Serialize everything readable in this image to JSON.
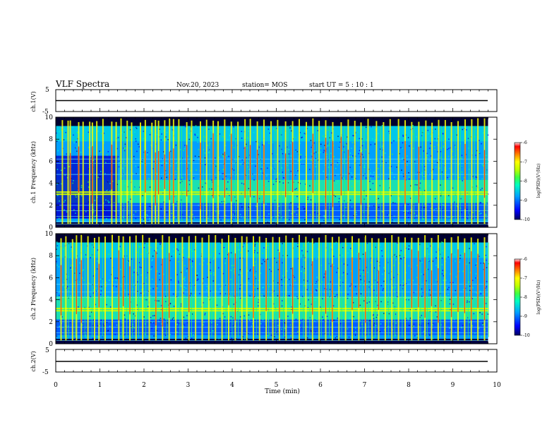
{
  "header": {
    "title": "VLF Spectra",
    "date": "Nov.20, 2023",
    "station": "station= MOS",
    "start": "start  UT =   5  : 10 : 1"
  },
  "chart_data": [
    {
      "id": "ch1-waveform",
      "type": "line",
      "ylabel": "ch.1(V)",
      "ylim": [
        -5,
        5
      ],
      "yticks": [
        "5",
        "-5"
      ],
      "xlim": [
        0,
        10
      ],
      "x": [
        0,
        9.8
      ],
      "y": [
        0,
        0
      ],
      "grid": false
    },
    {
      "id": "ch1-spectrogram",
      "type": "heatmap",
      "ylabel": "ch.1 Frequency (kHz)",
      "ylim": [
        0,
        10
      ],
      "yticks": [
        "0",
        "2",
        "4",
        "6",
        "8",
        "10"
      ],
      "xlim": [
        0,
        10
      ],
      "data_xlim": [
        0,
        9.8
      ],
      "colorbar": {
        "label": "log(PSD)(V²/Hz)",
        "range": [
          -10,
          -6
        ],
        "ticks": [
          "-6",
          "-7",
          "-8",
          "-9",
          "-10"
        ]
      },
      "bands_khz": [
        0.3,
        0.55,
        1.0,
        1.5,
        2.0,
        3.0,
        3.2,
        4.8,
        5.8,
        6.2
      ],
      "sferic_times_min": [
        0.15,
        0.28,
        0.33,
        0.52,
        0.62,
        0.77,
        0.83,
        0.93,
        1.07,
        1.27,
        1.37,
        1.48,
        1.62,
        1.72,
        1.92,
        2.03,
        2.18,
        2.26,
        2.33,
        2.47,
        2.58,
        2.67,
        2.79,
        2.97,
        3.08,
        3.28,
        3.42,
        3.57,
        3.68,
        3.83,
        3.98,
        4.13,
        4.29,
        4.41,
        4.57,
        4.72,
        4.88,
        5.03,
        5.21,
        5.37,
        5.52,
        5.68,
        5.83,
        5.97,
        6.12,
        6.28,
        6.47,
        6.63,
        6.78,
        6.92,
        7.08,
        7.27,
        7.43,
        7.58,
        7.77,
        7.92,
        8.07,
        8.23,
        8.39,
        8.53,
        8.68,
        8.83,
        8.97,
        9.12,
        9.28,
        9.43,
        9.57,
        9.72
      ]
    },
    {
      "id": "ch2-spectrogram",
      "type": "heatmap",
      "ylabel": "ch.2 Frequency (kHz)",
      "ylim": [
        0,
        10
      ],
      "yticks": [
        "0",
        "2",
        "4",
        "6",
        "8",
        "10"
      ],
      "xlim": [
        0,
        10
      ],
      "data_xlim": [
        0,
        9.8
      ],
      "colorbar": {
        "label": "log(PSD)(V²/Hz)",
        "range": [
          -10,
          -6
        ],
        "ticks": [
          "-6",
          "-7",
          "-8",
          "-9",
          "-10"
        ]
      },
      "bands_khz": [
        0.3,
        1.0,
        1.5,
        2.0,
        3.0,
        3.2,
        4.2,
        4.7,
        5.4
      ],
      "sferic_times_min": [
        0.12,
        0.23,
        0.38,
        0.47,
        0.58,
        0.73,
        0.88,
        0.98,
        1.12,
        1.28,
        1.43,
        1.53,
        1.68,
        1.82,
        1.97,
        2.12,
        2.27,
        2.42,
        2.57,
        2.72,
        2.87,
        3.02,
        3.17,
        3.32,
        3.47,
        3.62,
        3.77,
        3.92,
        4.07,
        4.22,
        4.33,
        4.48,
        4.62,
        4.77,
        4.92,
        5.07,
        5.22,
        5.37,
        5.52,
        5.67,
        5.82,
        5.97,
        6.12,
        6.27,
        6.42,
        6.57,
        6.72,
        6.87,
        7.02,
        7.17,
        7.32,
        7.47,
        7.62,
        7.77,
        7.92,
        8.07,
        8.22,
        8.37,
        8.52,
        8.67,
        8.82,
        8.97,
        9.12,
        9.27,
        9.42,
        9.57,
        9.72
      ]
    },
    {
      "id": "ch2-waveform",
      "type": "line",
      "ylabel": "ch.2(V)",
      "ylim": [
        -5,
        5
      ],
      "yticks": [
        "5",
        "-5"
      ],
      "xlim": [
        0,
        10
      ],
      "x": [
        0,
        9.8
      ],
      "y": [
        0,
        0
      ],
      "grid": false
    }
  ],
  "x_axis": {
    "label": "Time  (min)",
    "ticks": [
      "0",
      "1",
      "2",
      "3",
      "4",
      "5",
      "6",
      "7",
      "8",
      "9",
      "10"
    ]
  },
  "colors": {
    "background": "#000000",
    "colormap": [
      "#000060",
      "#0000ff",
      "#00a0ff",
      "#00ffc0",
      "#40ff40",
      "#c0ff00",
      "#ffff00",
      "#ff8000",
      "#ff0000",
      "#ffffff"
    ]
  }
}
